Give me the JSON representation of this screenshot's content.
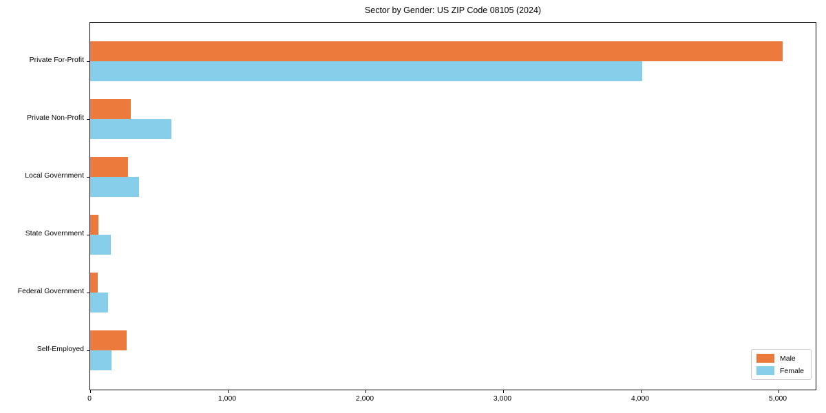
{
  "chart_data": {
    "type": "bar",
    "orientation": "horizontal",
    "title": "Sector by Gender: US ZIP Code 08105 (2024)",
    "categories": [
      "Private For-Profit",
      "Private Non-Profit",
      "Local Government",
      "State Government",
      "Federal Government",
      "Self-Employed"
    ],
    "series": [
      {
        "name": "Male",
        "color": "#ec7a3c",
        "values": [
          5030,
          295,
          275,
          62,
          55,
          265
        ]
      },
      {
        "name": "Female",
        "color": "#87ceeb",
        "values": [
          4010,
          590,
          355,
          150,
          130,
          155
        ]
      }
    ],
    "xlabel": "",
    "ylabel": "",
    "xlim": [
      0,
      5280
    ],
    "x_ticks": [
      0,
      1000,
      2000,
      3000,
      4000,
      5000
    ],
    "x_tick_labels": [
      "0",
      "1,000",
      "2,000",
      "3,000",
      "4,000",
      "5,000"
    ],
    "grid": false,
    "legend": {
      "position": "lower right"
    }
  },
  "colors": {
    "background": "#ffffff",
    "axis": "#000000",
    "legend_border": "#c9c9c9",
    "male": "#ec7a3c",
    "female": "#87ceeb"
  }
}
